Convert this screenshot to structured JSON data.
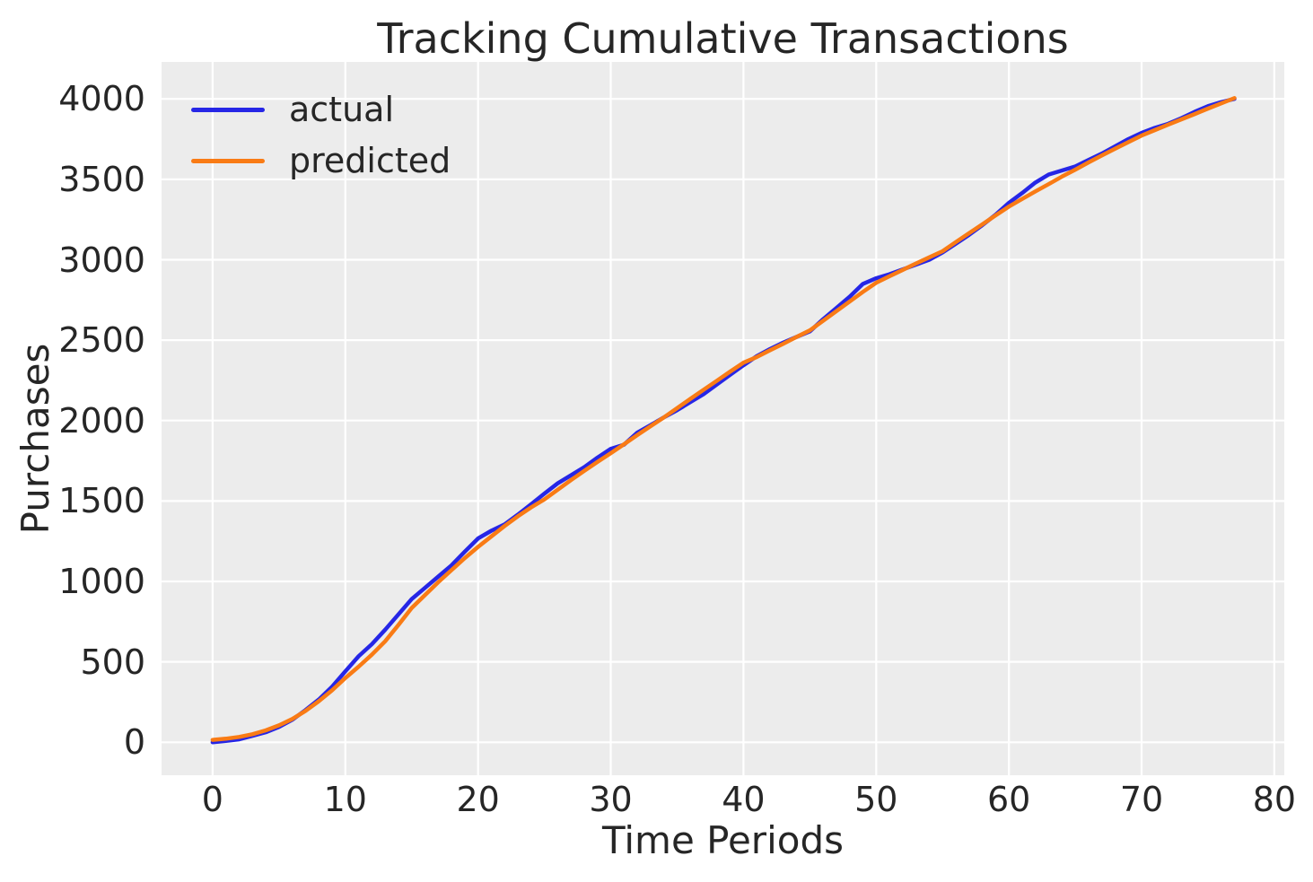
{
  "chart_data": {
    "type": "line",
    "title": "Tracking Cumulative Transactions",
    "xlabel": "Time Periods",
    "ylabel": "Purchases",
    "x_ticks": [
      0,
      10,
      20,
      30,
      40,
      50,
      60,
      70,
      80
    ],
    "y_ticks": [
      0,
      500,
      1000,
      1500,
      2000,
      2500,
      3000,
      3500,
      4000
    ],
    "xlim": [
      -3.85,
      80.75
    ],
    "ylim": [
      -205,
      4230
    ],
    "grid": true,
    "legend_position": "upper left",
    "background_color": "#ececec",
    "grid_color": "#ffffff",
    "text_color": "#262626",
    "x": [
      0,
      1,
      2,
      3,
      4,
      5,
      6,
      7,
      8,
      9,
      10,
      11,
      12,
      13,
      14,
      15,
      16,
      17,
      18,
      19,
      20,
      21,
      22,
      23,
      24,
      25,
      26,
      27,
      28,
      29,
      30,
      31,
      32,
      33,
      34,
      35,
      36,
      37,
      38,
      39,
      40,
      41,
      42,
      43,
      44,
      45,
      46,
      47,
      48,
      49,
      50,
      51,
      52,
      53,
      54,
      55,
      56,
      57,
      58,
      59,
      60,
      61,
      62,
      63,
      64,
      65,
      66,
      67,
      68,
      69,
      70,
      71,
      72,
      73,
      74,
      75,
      76,
      77
    ],
    "series": [
      {
        "name": "actual",
        "color": "#2626e6",
        "values": [
          0,
          8,
          18,
          40,
          62,
          95,
          140,
          200,
          265,
          345,
          441,
          535,
          610,
          700,
          795,
          890,
          960,
          1030,
          1100,
          1185,
          1267,
          1315,
          1355,
          1415,
          1480,
          1546,
          1610,
          1660,
          1710,
          1770,
          1824,
          1850,
          1925,
          1972,
          2020,
          2065,
          2115,
          2165,
          2225,
          2285,
          2344,
          2400,
          2445,
          2485,
          2520,
          2555,
          2630,
          2700,
          2770,
          2850,
          2885,
          2910,
          2940,
          2970,
          3000,
          3045,
          3100,
          3155,
          3215,
          3280,
          3354,
          3415,
          3480,
          3530,
          3555,
          3580,
          3620,
          3660,
          3705,
          3750,
          3789,
          3820,
          3845,
          3880,
          3920,
          3955,
          3980,
          4000
        ]
      },
      {
        "name": "predicted",
        "color": "#f97b15",
        "values": [
          15,
          22,
          33,
          50,
          74,
          105,
          145,
          195,
          255,
          323,
          400,
          470,
          545,
          628,
          730,
          835,
          915,
          995,
          1070,
          1145,
          1215,
          1280,
          1345,
          1405,
          1460,
          1510,
          1570,
          1630,
          1687,
          1743,
          1797,
          1853,
          1910,
          1965,
          2020,
          2077,
          2135,
          2192,
          2248,
          2305,
          2360,
          2395,
          2437,
          2478,
          2520,
          2561,
          2620,
          2680,
          2740,
          2800,
          2857,
          2897,
          2937,
          2977,
          3015,
          3053,
          3110,
          3165,
          3220,
          3276,
          3331,
          3378,
          3425,
          3470,
          3517,
          3560,
          3605,
          3648,
          3690,
          3731,
          3772,
          3806,
          3840,
          3873,
          3906,
          3940,
          3972,
          4005
        ]
      }
    ]
  }
}
